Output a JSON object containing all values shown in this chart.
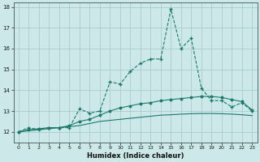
{
  "xlabel": "Humidex (Indice chaleur)",
  "bg_color": "#cce8e8",
  "grid_color": "#aacccc",
  "line_color": "#1a7a6a",
  "xlim": [
    -0.5,
    23.5
  ],
  "ylim": [
    11.5,
    18.2
  ],
  "xticks": [
    0,
    1,
    2,
    3,
    4,
    5,
    6,
    7,
    8,
    9,
    10,
    11,
    12,
    13,
    14,
    15,
    16,
    17,
    18,
    19,
    20,
    21,
    22,
    23
  ],
  "yticks": [
    12,
    13,
    14,
    15,
    16,
    17,
    18
  ],
  "series1_x": [
    0,
    1,
    2,
    3,
    4,
    5,
    6,
    7,
    8,
    9,
    10,
    11,
    12,
    13,
    14,
    15,
    16,
    17,
    18,
    19,
    20,
    21,
    22,
    23
  ],
  "series1_y": [
    12.0,
    12.2,
    12.1,
    12.2,
    12.2,
    12.2,
    13.1,
    12.9,
    13.0,
    14.4,
    14.3,
    14.9,
    15.3,
    15.5,
    15.5,
    17.9,
    16.0,
    16.5,
    14.1,
    13.5,
    13.5,
    13.2,
    13.4,
    13.0
  ],
  "series2_x": [
    0,
    1,
    2,
    3,
    4,
    5,
    6,
    7,
    8,
    9,
    10,
    11,
    12,
    13,
    14,
    15,
    16,
    17,
    18,
    19,
    20,
    21,
    22,
    23
  ],
  "series2_y": [
    12.0,
    12.1,
    12.15,
    12.2,
    12.2,
    12.3,
    12.5,
    12.6,
    12.8,
    13.0,
    13.15,
    13.25,
    13.35,
    13.4,
    13.5,
    13.55,
    13.6,
    13.65,
    13.7,
    13.7,
    13.65,
    13.55,
    13.45,
    13.05
  ],
  "series3_x": [
    0,
    1,
    2,
    3,
    4,
    5,
    6,
    7,
    8,
    9,
    10,
    11,
    12,
    13,
    14,
    15,
    16,
    17,
    18,
    19,
    20,
    21,
    22,
    23
  ],
  "series3_y": [
    12.0,
    12.05,
    12.1,
    12.15,
    12.2,
    12.25,
    12.3,
    12.4,
    12.5,
    12.55,
    12.6,
    12.65,
    12.7,
    12.75,
    12.8,
    12.82,
    12.85,
    12.87,
    12.88,
    12.88,
    12.87,
    12.85,
    12.82,
    12.78
  ]
}
